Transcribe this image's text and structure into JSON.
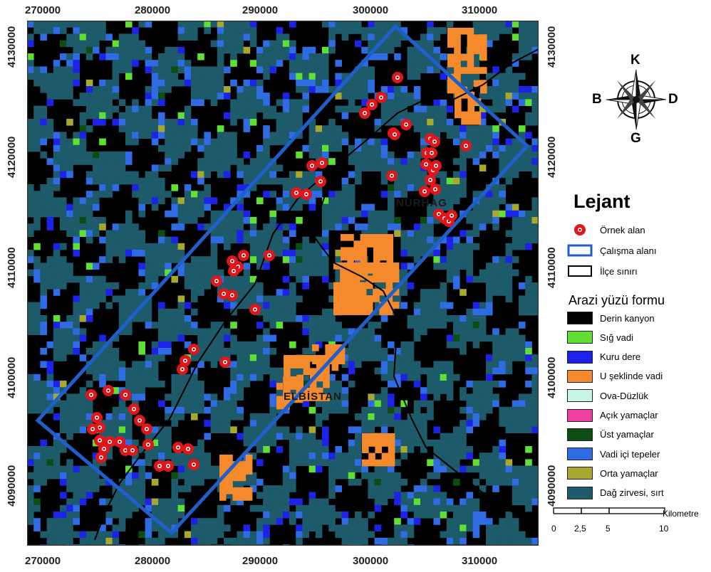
{
  "axes": {
    "x_ticks": [
      "270000",
      "280000",
      "290000",
      "300000",
      "310000"
    ],
    "y_ticks": [
      "4130000",
      "4120000",
      "4110000",
      "4100000",
      "4090000"
    ]
  },
  "compass": {
    "north": "K",
    "south": "G",
    "west": "B",
    "east": "D"
  },
  "legend": {
    "title": "Lejant",
    "symbols": [
      {
        "label": "Örnek alan",
        "type": "sample-point",
        "color": "#e0161b"
      },
      {
        "label": "Çalışma alanı",
        "type": "study-area",
        "color": "#1f5fc9"
      },
      {
        "label": "İlçe sınırı",
        "type": "district-boundary",
        "color": "#000000"
      }
    ],
    "landform_title": "Arazi yüzü formu",
    "landforms": [
      {
        "label": "Derin kanyon",
        "color": "#000000"
      },
      {
        "label": "Sığ vadi",
        "color": "#5fe033"
      },
      {
        "label": "Kuru dere",
        "color": "#1d22e8"
      },
      {
        "label": "U şeklinde vadi",
        "color": "#f58a2c"
      },
      {
        "label": "Ova-Düzlük",
        "color": "#c8f5e4"
      },
      {
        "label": "Açık yamaçlar",
        "color": "#ef3fa2"
      },
      {
        "label": "Üst yamaçlar",
        "color": "#0e4d12"
      },
      {
        "label": "Vadi içi tepeler",
        "color": "#2f6be3"
      },
      {
        "label": "Orta yamaçlar",
        "color": "#a8a82e"
      },
      {
        "label": "Dağ zirvesi, sırt",
        "color": "#1d5b6a"
      }
    ]
  },
  "scale": {
    "labels": [
      "0",
      "2,5",
      "5",
      "10"
    ],
    "unit": "Kilometre"
  },
  "place_labels": [
    "NURHAG",
    "ELBİSTAN"
  ]
}
